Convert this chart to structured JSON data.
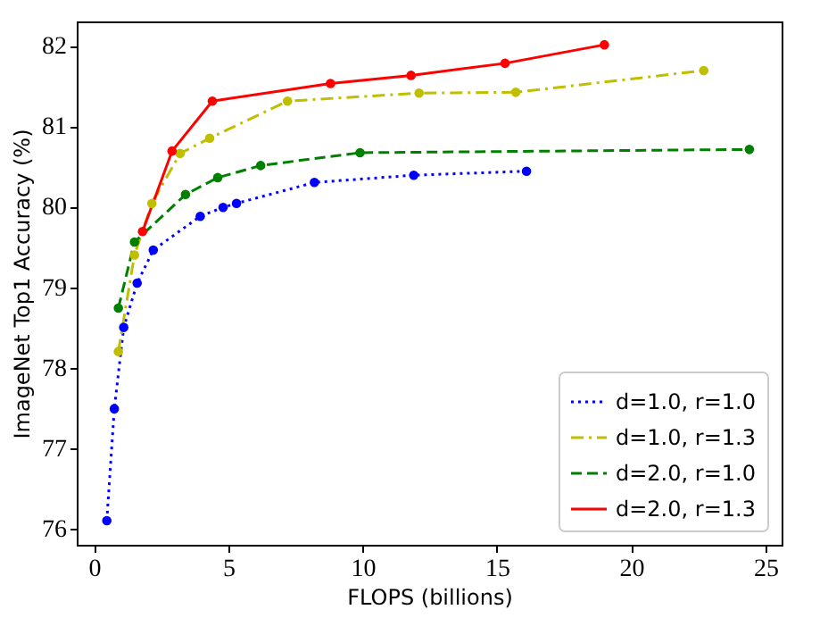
{
  "chart_data": {
    "type": "line",
    "xlabel": "FLOPS (billions)",
    "ylabel": "ImageNet Top1 Accuracy (%)",
    "xlim": [
      -0.65,
      25.6
    ],
    "xticks": [
      0,
      5,
      10,
      15,
      20,
      25
    ],
    "ylim": [
      75.8,
      82.3
    ],
    "yticks": [
      76,
      77,
      78,
      79,
      80,
      81,
      82
    ],
    "grid": false,
    "legend": "bottom right",
    "marker": "circle",
    "series": [
      {
        "name": "d=1.0, r=1.0",
        "color": "#0000ff",
        "line_style": "dotted",
        "x": [
          0.47,
          0.75,
          1.1,
          1.6,
          2.2,
          3.95,
          4.8,
          5.3,
          8.2,
          11.9,
          16.1
        ],
        "values": [
          76.1,
          77.49,
          78.5,
          79.05,
          79.46,
          79.88,
          79.99,
          80.04,
          80.3,
          80.39,
          80.44
        ]
      },
      {
        "name": "d=1.0, r=1.3",
        "color": "#bfbf00",
        "line_style": "dashdot",
        "x": [
          0.9,
          1.5,
          2.15,
          3.2,
          4.3,
          7.2,
          12.1,
          15.7,
          22.7
        ],
        "values": [
          78.2,
          79.4,
          80.04,
          80.66,
          80.85,
          81.31,
          81.41,
          81.42,
          81.69
        ]
      },
      {
        "name": "d=2.0, r=1.0",
        "color": "#008000",
        "line_style": "dashed",
        "x": [
          0.9,
          1.5,
          3.4,
          4.6,
          6.2,
          9.9,
          24.4
        ],
        "values": [
          78.74,
          79.56,
          80.15,
          80.36,
          80.51,
          80.67,
          80.71
        ]
      },
      {
        "name": "d=2.0, r=1.3",
        "color": "#ff0000",
        "line_style": "solid",
        "x": [
          1.8,
          2.9,
          4.4,
          8.8,
          11.8,
          15.3,
          19.0
        ],
        "values": [
          79.69,
          80.69,
          81.31,
          81.53,
          81.63,
          81.78,
          82.01
        ]
      }
    ]
  }
}
